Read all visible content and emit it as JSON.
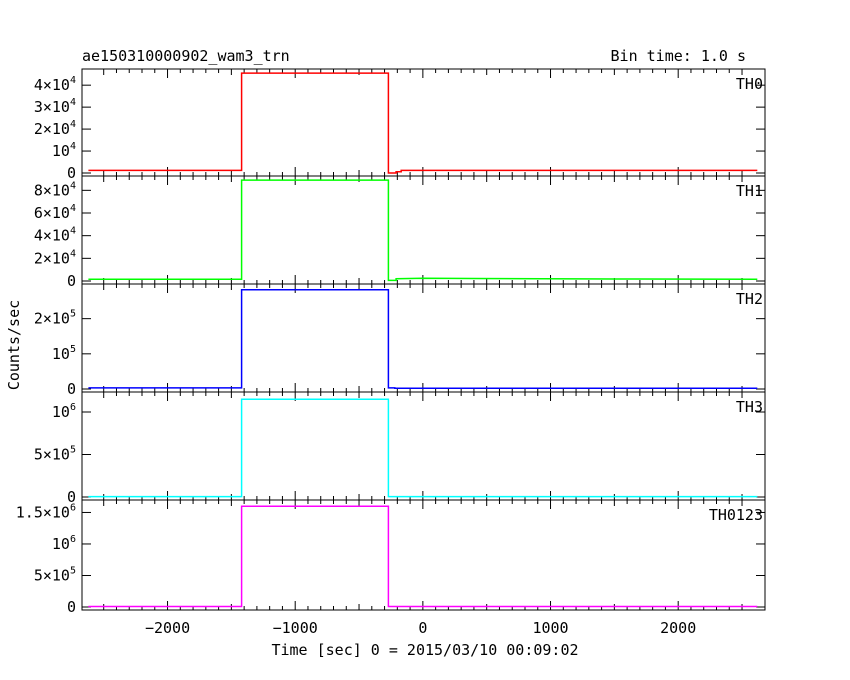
{
  "chart_data": {
    "type": "line",
    "title": "ae150310000902_wam3_trn",
    "bin_time_label": "Bin time: 1.0 s",
    "xlabel": "Time [sec] 0 = 2015/03/10 00:09:02",
    "ylabel": "Counts/sec",
    "xlim": [
      -2670,
      2680
    ],
    "x_ticks": [
      {
        "value": -2000,
        "label": "−2000"
      },
      {
        "value": -1000,
        "label": "−1000"
      },
      {
        "value": 0,
        "label": "0"
      },
      {
        "value": 1000,
        "label": "1000"
      },
      {
        "value": 2000,
        "label": "2000"
      }
    ],
    "grid": false,
    "panels": [
      {
        "name": "TH0",
        "color": "#ff0000",
        "ylim": [
          0,
          46000
        ],
        "y_ticks": [
          {
            "value": 0,
            "base": "0",
            "exp": ""
          },
          {
            "value": 10000,
            "base": "10",
            "exp": "4"
          },
          {
            "value": 20000,
            "base": "2×10",
            "exp": "4"
          },
          {
            "value": 30000,
            "base": "3×10",
            "exp": "4"
          },
          {
            "value": 40000,
            "base": "4×10",
            "exp": "4"
          }
        ],
        "x": [
          -2620,
          -1420,
          -1420,
          -270,
          -270,
          -210,
          -210,
          -170,
          -170,
          -130,
          -130,
          2620
        ],
        "y": [
          1200,
          1200,
          45500,
          45500,
          0,
          0,
          600,
          600,
          1200,
          1200,
          1200,
          1200
        ]
      },
      {
        "name": "TH1",
        "color": "#00ff00",
        "ylim": [
          0,
          90000
        ],
        "y_ticks": [
          {
            "value": 0,
            "base": "0",
            "exp": ""
          },
          {
            "value": 20000,
            "base": "2×10",
            "exp": "4"
          },
          {
            "value": 40000,
            "base": "4×10",
            "exp": "4"
          },
          {
            "value": 60000,
            "base": "6×10",
            "exp": "4"
          },
          {
            "value": 80000,
            "base": "8×10",
            "exp": "4"
          }
        ],
        "x": [
          -2620,
          -1420,
          -1420,
          -270,
          -270,
          -210,
          -210,
          0,
          400,
          1500,
          2620
        ],
        "y": [
          1500,
          1500,
          89000,
          89000,
          500,
          500,
          2000,
          2500,
          2200,
          1800,
          1500
        ]
      },
      {
        "name": "TH2",
        "color": "#0000ff",
        "ylim": [
          0,
          290000
        ],
        "y_ticks": [
          {
            "value": 0,
            "base": "0",
            "exp": ""
          },
          {
            "value": 100000,
            "base": "10",
            "exp": "5"
          },
          {
            "value": 200000,
            "base": "2×10",
            "exp": "5"
          }
        ],
        "x": [
          -2620,
          -1420,
          -1420,
          -270,
          -270,
          -220,
          -220,
          2620
        ],
        "y": [
          3000,
          3000,
          282000,
          282000,
          3000,
          3000,
          2000,
          2000
        ]
      },
      {
        "name": "TH3",
        "color": "#00ffff",
        "ylim": [
          0,
          1200000
        ],
        "y_ticks": [
          {
            "value": 0,
            "base": "0",
            "exp": ""
          },
          {
            "value": 500000,
            "base": "5×10",
            "exp": "5"
          },
          {
            "value": 1000000,
            "base": "10",
            "exp": "6"
          }
        ],
        "x": [
          -2620,
          -1420,
          -1420,
          -270,
          -270,
          2620
        ],
        "y": [
          5000,
          5000,
          1150000,
          1150000,
          5000,
          5000
        ]
      },
      {
        "name": "TH0123",
        "color": "#ff00ff",
        "ylim": [
          0,
          1650000
        ],
        "y_ticks": [
          {
            "value": 0,
            "base": "0",
            "exp": ""
          },
          {
            "value": 500000,
            "base": "5×10",
            "exp": "5"
          },
          {
            "value": 1000000,
            "base": "10",
            "exp": "6"
          },
          {
            "value": 1500000,
            "base": "1.5×10",
            "exp": "6"
          }
        ],
        "x": [
          -2620,
          -1420,
          -1420,
          -270,
          -270,
          2620
        ],
        "y": [
          8000,
          8000,
          1600000,
          1600000,
          8000,
          8000
        ]
      }
    ]
  }
}
